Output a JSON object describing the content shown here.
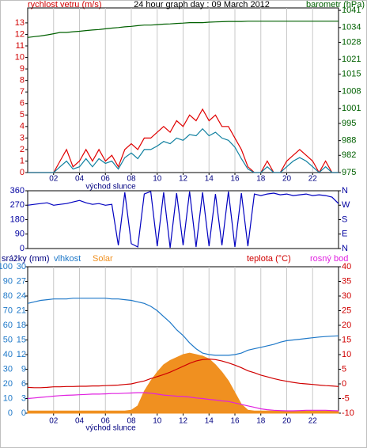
{
  "chart_data": [
    {
      "type": "line",
      "title": "24 hour graph day : 09 March 2012",
      "ylabel": "rychlost vetru (m/s)",
      "y2label": "barometr (hPa)",
      "annotation": "východ slunce",
      "grid": "x",
      "xlim": [
        0,
        24
      ],
      "xticks": [
        {
          "value": 2,
          "label": "02"
        },
        {
          "value": 4,
          "label": "04"
        },
        {
          "value": 6,
          "label": "06"
        },
        {
          "value": 8,
          "label": "08"
        },
        {
          "value": 10,
          "label": "10"
        },
        {
          "value": 12,
          "label": "12"
        },
        {
          "value": 14,
          "label": "14"
        },
        {
          "value": 16,
          "label": "16"
        },
        {
          "value": 18,
          "label": "18"
        },
        {
          "value": 20,
          "label": "20"
        },
        {
          "value": 22,
          "label": "22"
        }
      ],
      "ylim": [
        0,
        14.3
      ],
      "yticks": [
        0,
        1,
        2,
        3,
        4,
        5,
        6,
        7,
        8,
        9,
        10,
        11,
        12,
        13
      ],
      "y2lim": [
        975,
        1042
      ],
      "y2ticks": [
        975,
        982,
        988,
        995,
        1001,
        1008,
        1015,
        1021,
        1028,
        1034,
        1041
      ],
      "x": [
        0,
        0.5,
        1,
        1.5,
        2,
        2.5,
        3,
        3.5,
        4,
        4.5,
        5,
        5.5,
        6,
        6.5,
        7,
        7.5,
        8,
        8.5,
        9,
        9.5,
        10,
        10.5,
        11,
        11.5,
        12,
        12.5,
        13,
        13.5,
        14,
        14.5,
        15,
        15.5,
        16,
        16.5,
        17,
        17.5,
        18,
        18.5,
        19,
        19.5,
        20,
        20.5,
        21,
        21.5,
        22,
        22.5,
        23,
        23.5,
        24
      ],
      "series": [
        {
          "color": "#006000",
          "axis": "y2",
          "values": [
            1030,
            1030.3,
            1030.6,
            1031,
            1031.5,
            1032,
            1032,
            1032.3,
            1032.5,
            1032.8,
            1033,
            1033.2,
            1033.5,
            1033.8,
            1034,
            1034.3,
            1034.5,
            1034.8,
            1035,
            1035,
            1035.2,
            1035.4,
            1035.5,
            1035.7,
            1035.8,
            1036,
            1036,
            1036,
            1036.2,
            1036.3,
            1036.4,
            1036.5,
            1036.5,
            1036.5,
            1036.6,
            1036.6,
            1036.6,
            1036.6,
            1036.6,
            1036.6,
            1036.6,
            1036.6,
            1036.6,
            1036.6,
            1036.6,
            1036.6,
            1036.6,
            1036.6,
            1036.6
          ]
        },
        {
          "color": "#e00000",
          "values": [
            0,
            0,
            0,
            0,
            0,
            1,
            2,
            0.5,
            1,
            2,
            1,
            2,
            1,
            1.5,
            0.5,
            2,
            2.5,
            2,
            3,
            3,
            3.5,
            4,
            3.5,
            4.5,
            4,
            5,
            4.5,
            5.5,
            4.5,
            5,
            4,
            4,
            3,
            2,
            0.5,
            0,
            0,
            1,
            0,
            0,
            1,
            1.5,
            2,
            1.5,
            1,
            0,
            1,
            0,
            0
          ]
        },
        {
          "color": "#1080a0",
          "values": [
            0,
            0,
            0,
            0,
            0,
            0.5,
            1,
            0.3,
            0.5,
            1.2,
            0.5,
            1.2,
            0.8,
            1,
            0.3,
            1.3,
            1.7,
            1.2,
            2,
            2,
            2.3,
            2.7,
            2.5,
            3,
            2.8,
            3.3,
            3.2,
            3.8,
            3.2,
            3.5,
            3,
            2.8,
            2.2,
            1.2,
            0.3,
            0,
            0,
            0.5,
            0,
            0,
            0.5,
            1,
            1.3,
            1,
            0.5,
            0,
            0.5,
            0,
            0
          ]
        }
      ]
    },
    {
      "type": "line",
      "xlim": [
        0,
        24
      ],
      "ylim": [
        0,
        360
      ],
      "yticks": [
        0,
        90,
        180,
        270,
        360
      ],
      "y2lim": [
        0,
        360
      ],
      "y2ticks": [
        {
          "value": 0,
          "label": "N"
        },
        {
          "value": 90,
          "label": "E"
        },
        {
          "value": 180,
          "label": "S"
        },
        {
          "value": 270,
          "label": "W"
        },
        {
          "value": 360,
          "label": "N"
        }
      ],
      "x": [
        0,
        0.5,
        1,
        1.5,
        2,
        2.5,
        3,
        3.5,
        4,
        4.5,
        5,
        5.5,
        6,
        6.5,
        7,
        7.5,
        8,
        8.5,
        9,
        9.5,
        10,
        10.5,
        11,
        11.5,
        12,
        12.5,
        13,
        13.5,
        14,
        14.5,
        15,
        15.5,
        16,
        16.5,
        17,
        17.5,
        18,
        18.5,
        19,
        19.5,
        20,
        20.5,
        21,
        21.5,
        22,
        22.5,
        23,
        23.5,
        24
      ],
      "series": [
        {
          "color": "#0000c0",
          "values": [
            270,
            275,
            280,
            285,
            270,
            275,
            280,
            290,
            300,
            285,
            275,
            280,
            270,
            275,
            20,
            350,
            30,
            10,
            340,
            355,
            15,
            350,
            5,
            345,
            20,
            355,
            10,
            350,
            15,
            340,
            20,
            355,
            10,
            345,
            15,
            340,
            330,
            340,
            345,
            335,
            340,
            330,
            335,
            340,
            330,
            335,
            330,
            320,
            280
          ]
        }
      ]
    },
    {
      "type": "line",
      "annotation": "východ slunce",
      "grid": "x",
      "y3label": "srážky (mm)",
      "xlim": [
        0,
        24
      ],
      "xticks": [
        {
          "value": 2,
          "label": "02"
        },
        {
          "value": 4,
          "label": "04"
        },
        {
          "value": 6,
          "label": "06"
        },
        {
          "value": 8,
          "label": "08"
        },
        {
          "value": 10,
          "label": "10"
        },
        {
          "value": 12,
          "label": "12"
        },
        {
          "value": 14,
          "label": "14"
        },
        {
          "value": 16,
          "label": "16"
        },
        {
          "value": 18,
          "label": "18"
        },
        {
          "value": 20,
          "label": "20"
        },
        {
          "value": 22,
          "label": "22"
        }
      ],
      "ylim": [
        0,
        100
      ],
      "yticks": [
        0,
        10,
        20,
        30,
        40,
        50,
        60,
        70,
        80,
        90,
        100
      ],
      "y2lim": [
        -10,
        40
      ],
      "y2ticks": [
        -10,
        -5,
        0,
        5,
        10,
        15,
        20,
        25,
        30,
        35,
        40
      ],
      "y3lim": [
        0,
        30
      ],
      "y3ticks": [
        0,
        3,
        6,
        9,
        12,
        15,
        18,
        21,
        24,
        27,
        30
      ],
      "x": [
        0,
        0.5,
        1,
        1.5,
        2,
        2.5,
        3,
        3.5,
        4,
        4.5,
        5,
        5.5,
        6,
        6.5,
        7,
        7.5,
        8,
        8.5,
        9,
        9.5,
        10,
        10.5,
        11,
        11.5,
        12,
        12.5,
        13,
        13.5,
        14,
        14.5,
        15,
        15.5,
        16,
        16.5,
        17,
        17.5,
        18,
        18.5,
        19,
        19.5,
        20,
        20.5,
        21,
        21.5,
        22,
        22.5,
        23,
        23.5,
        24
      ],
      "series": [
        {
          "name": "Solar",
          "color": "#f09020",
          "fill": true,
          "values": [
            1.5,
            1.5,
            1.5,
            1.5,
            1.5,
            1.5,
            1.5,
            1.5,
            1.5,
            1.5,
            1.5,
            1.5,
            1.5,
            1.5,
            1.5,
            1.5,
            2,
            5,
            15,
            22,
            28,
            33,
            36,
            38,
            40,
            41,
            40,
            39,
            37,
            33,
            28,
            22,
            14,
            6,
            2,
            1.5,
            1.5,
            1.5,
            1.5,
            1.5,
            1.5,
            1.5,
            1.5,
            1.5,
            1.5,
            1.5,
            1.5,
            1.5,
            1.5
          ]
        },
        {
          "name": "vlhkost",
          "color": "#1e78c8",
          "values": [
            75,
            76,
            77,
            77.5,
            78,
            78,
            78,
            78.5,
            78.5,
            78.5,
            78.5,
            78.5,
            78.5,
            78,
            78,
            77.5,
            77,
            76,
            75,
            73,
            70,
            66,
            62,
            57,
            53,
            48,
            44,
            41,
            40,
            39.5,
            39.5,
            39.5,
            40,
            41,
            43,
            44,
            45,
            46,
            47,
            48.5,
            49.5,
            50,
            50.5,
            51,
            51.5,
            52,
            52.3,
            52.6,
            52.8
          ]
        },
        {
          "name": "teplota (°C)",
          "color": "#d00000",
          "axis": "y2",
          "values": [
            -1.2,
            -1.3,
            -1.3,
            -1.2,
            -1,
            -1,
            -0.9,
            -0.9,
            -0.8,
            -0.8,
            -0.7,
            -0.7,
            -0.6,
            -0.5,
            -0.4,
            -0.2,
            0,
            0.5,
            1,
            1.8,
            2.5,
            3.2,
            4,
            5,
            6,
            7,
            7.8,
            8.3,
            8.5,
            8.3,
            7.8,
            7.2,
            6.4,
            5.5,
            4.5,
            3.8,
            3,
            2.4,
            1.8,
            1.3,
            0.9,
            0.5,
            0.2,
            0,
            -0.2,
            -0.4,
            -0.6,
            -0.7,
            -0.9
          ]
        },
        {
          "name": "rosný bod",
          "color": "#e020e0",
          "axis": "y2",
          "values": [
            -5,
            -4.8,
            -4.6,
            -4.4,
            -4.2,
            -4,
            -3.9,
            -3.8,
            -3.7,
            -3.6,
            -3.5,
            -3.5,
            -3.4,
            -3.3,
            -3.3,
            -3.2,
            -3.1,
            -3,
            -3,
            -3.2,
            -3.5,
            -3.8,
            -4,
            -4.2,
            -4.3,
            -4.5,
            -4.8,
            -5,
            -5.3,
            -5.5,
            -5.8,
            -6,
            -6.5,
            -7,
            -7.5,
            -8,
            -8.5,
            -8.8,
            -9,
            -9.1,
            -9.2,
            -9.2,
            -9.1,
            -9,
            -9,
            -9,
            -9,
            -9.1,
            -9.2
          ]
        }
      ]
    }
  ]
}
